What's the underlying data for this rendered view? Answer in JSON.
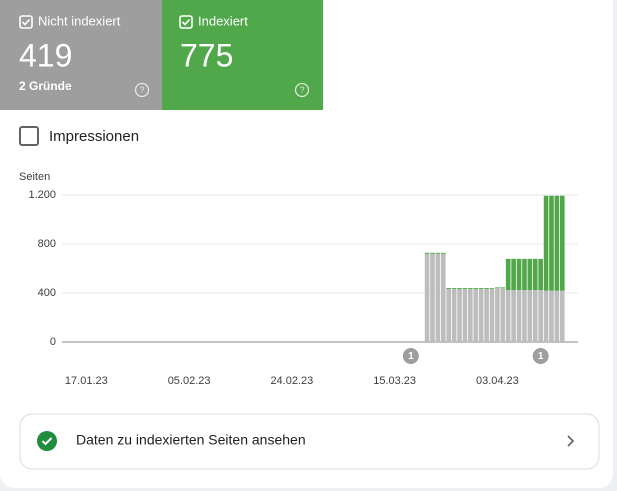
{
  "cards": [
    {
      "title": "Nicht indexiert",
      "value": "419",
      "note": "2 Gründe"
    },
    {
      "title": "Indexiert",
      "value": "775"
    }
  ],
  "impressions": "Impressionen",
  "button": "Daten zu indexierten Seiten ansehen",
  "chart_data": {
    "type": "bar",
    "stacked": true,
    "ylabel": "Seiten",
    "ylim": [
      0,
      1200
    ],
    "yticks": [
      0,
      400,
      800,
      {
        "value": 1200,
        "label": "1.200"
      }
    ],
    "grid": true,
    "categories": [
      null,
      null,
      null,
      null,
      "17.01.23",
      null,
      null,
      null,
      null,
      null,
      null,
      null,
      null,
      null,
      null,
      null,
      null,
      null,
      null,
      null,
      null,
      null,
      null,
      "05.02.23",
      null,
      null,
      null,
      null,
      null,
      null,
      null,
      null,
      null,
      null,
      null,
      null,
      null,
      null,
      null,
      null,
      null,
      null,
      "24.02.23",
      null,
      null,
      null,
      null,
      null,
      null,
      null,
      null,
      null,
      null,
      null,
      null,
      null,
      null,
      null,
      null,
      null,
      null,
      "15.03.23",
      null,
      null,
      null,
      null,
      null,
      null,
      null,
      null,
      null,
      null,
      null,
      null,
      null,
      null,
      null,
      null,
      null,
      null,
      "03.04.23",
      null,
      null,
      null,
      null,
      null,
      null,
      null,
      null,
      null,
      null,
      null,
      null
    ],
    "series": [
      {
        "name": "Nicht indexiert",
        "color": "#bdbdbd",
        "values": [
          null,
          null,
          null,
          null,
          null,
          null,
          null,
          null,
          null,
          null,
          null,
          null,
          null,
          null,
          null,
          null,
          null,
          null,
          null,
          null,
          null,
          null,
          null,
          null,
          null,
          null,
          null,
          null,
          null,
          null,
          null,
          null,
          null,
          null,
          null,
          null,
          null,
          null,
          null,
          null,
          null,
          null,
          null,
          null,
          null,
          null,
          null,
          null,
          null,
          null,
          null,
          null,
          null,
          null,
          null,
          null,
          null,
          null,
          null,
          null,
          null,
          null,
          null,
          null,
          null,
          null,
          null,
          720,
          720,
          720,
          720,
          432,
          432,
          432,
          432,
          432,
          432,
          432,
          432,
          435,
          440,
          440,
          424,
          424,
          424,
          424,
          424,
          424,
          424,
          419,
          419,
          419,
          419
        ]
      },
      {
        "name": "Indexiert",
        "color": "#51a84a",
        "values": [
          null,
          null,
          null,
          null,
          null,
          null,
          null,
          null,
          null,
          null,
          null,
          null,
          null,
          null,
          null,
          null,
          null,
          null,
          null,
          null,
          null,
          null,
          null,
          null,
          null,
          null,
          null,
          null,
          null,
          null,
          null,
          null,
          null,
          null,
          null,
          null,
          null,
          null,
          null,
          null,
          null,
          null,
          null,
          null,
          null,
          null,
          null,
          null,
          null,
          null,
          null,
          null,
          null,
          null,
          null,
          null,
          null,
          null,
          null,
          null,
          null,
          null,
          null,
          null,
          null,
          null,
          null,
          8,
          8,
          8,
          8,
          8,
          8,
          8,
          8,
          8,
          8,
          8,
          8,
          6,
          6,
          6,
          255,
          255,
          255,
          255,
          255,
          255,
          255,
          775,
          775,
          775,
          775
        ]
      }
    ],
    "annotations": [
      {
        "label": "1",
        "at": 64
      },
      {
        "label": "1",
        "at": 88
      }
    ]
  }
}
